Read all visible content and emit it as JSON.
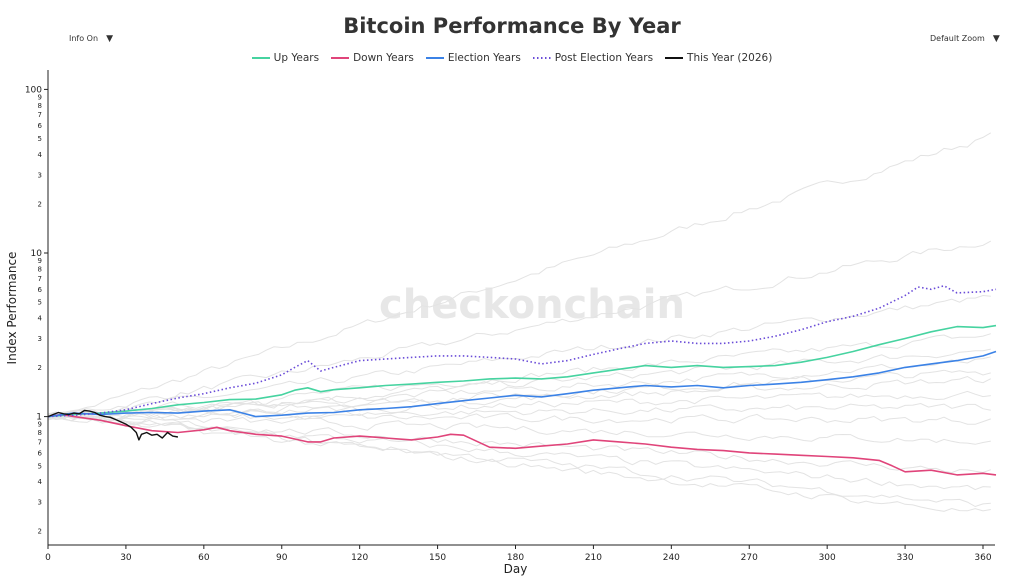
{
  "controls": {
    "info_label": "Info On",
    "zoom_label": "Default Zoom",
    "dropdown_arrow": "▼"
  },
  "watermark": "checkonchain",
  "colors": {
    "up": "#46d3a0",
    "down": "#e0447a",
    "election": "#3b82e6",
    "post_election": "#6a4cd8",
    "this_year": "#111111",
    "background_lines": "#e3e3e3"
  },
  "chart_data": {
    "type": "line",
    "title": "Bitcoin Performance By Year",
    "xlabel": "Day",
    "ylabel": "Index Performance",
    "xlim": [
      0,
      366
    ],
    "ylim": [
      0.17,
      150
    ],
    "y_scale": "log",
    "x_ticks": [
      0,
      30,
      60,
      90,
      120,
      150,
      180,
      210,
      240,
      270,
      300,
      330,
      360
    ],
    "y_major_ticks": [
      1,
      10,
      100
    ],
    "y_minor_labels": [
      {
        "v": 0.2,
        "t": "2"
      },
      {
        "v": 0.3,
        "t": "3"
      },
      {
        "v": 0.4,
        "t": "4"
      },
      {
        "v": 0.5,
        "t": "5"
      },
      {
        "v": 0.6,
        "t": "6"
      },
      {
        "v": 0.7,
        "t": "7"
      },
      {
        "v": 0.8,
        "t": "8"
      },
      {
        "v": 0.9,
        "t": "9"
      },
      {
        "v": 2,
        "t": "2"
      },
      {
        "v": 3,
        "t": "3"
      },
      {
        "v": 4,
        "t": "4"
      },
      {
        "v": 5,
        "t": "5"
      },
      {
        "v": 6,
        "t": "6"
      },
      {
        "v": 7,
        "t": "7"
      },
      {
        "v": 8,
        "t": "8"
      },
      {
        "v": 9,
        "t": "9"
      },
      {
        "v": 20,
        "t": "2"
      },
      {
        "v": 30,
        "t": "3"
      },
      {
        "v": 40,
        "t": "4"
      },
      {
        "v": 50,
        "t": "5"
      },
      {
        "v": 60,
        "t": "6"
      },
      {
        "v": 70,
        "t": "7"
      },
      {
        "v": 80,
        "t": "8"
      },
      {
        "v": 90,
        "t": "9"
      }
    ],
    "legend_position": "top-center",
    "grid": false,
    "series": [
      {
        "name": "Up Years",
        "key": "up",
        "style": "solid",
        "x": [
          0,
          10,
          20,
          30,
          40,
          50,
          60,
          70,
          80,
          90,
          95,
          100,
          105,
          110,
          120,
          130,
          140,
          150,
          160,
          170,
          180,
          190,
          200,
          210,
          220,
          230,
          240,
          250,
          260,
          270,
          280,
          290,
          300,
          310,
          320,
          330,
          340,
          350,
          360,
          365
        ],
        "y": [
          1.0,
          1.03,
          1.05,
          1.08,
          1.12,
          1.18,
          1.22,
          1.27,
          1.28,
          1.36,
          1.45,
          1.5,
          1.42,
          1.46,
          1.5,
          1.55,
          1.58,
          1.62,
          1.65,
          1.7,
          1.72,
          1.7,
          1.75,
          1.85,
          1.95,
          2.05,
          2.0,
          2.05,
          2.0,
          2.02,
          2.05,
          2.15,
          2.3,
          2.5,
          2.75,
          3.0,
          3.3,
          3.55,
          3.5,
          3.6
        ]
      },
      {
        "name": "Down Years",
        "key": "down",
        "style": "solid",
        "x": [
          0,
          5,
          10,
          20,
          30,
          40,
          50,
          60,
          65,
          70,
          80,
          90,
          100,
          105,
          110,
          120,
          130,
          140,
          150,
          155,
          160,
          170,
          180,
          190,
          200,
          210,
          220,
          230,
          240,
          250,
          260,
          270,
          280,
          290,
          300,
          310,
          320,
          325,
          330,
          340,
          350,
          360,
          365
        ],
        "y": [
          1.0,
          1.03,
          1.0,
          0.95,
          0.88,
          0.82,
          0.8,
          0.83,
          0.86,
          0.82,
          0.78,
          0.76,
          0.7,
          0.7,
          0.74,
          0.76,
          0.74,
          0.72,
          0.75,
          0.78,
          0.77,
          0.65,
          0.64,
          0.66,
          0.68,
          0.72,
          0.7,
          0.68,
          0.65,
          0.63,
          0.62,
          0.6,
          0.59,
          0.58,
          0.57,
          0.56,
          0.54,
          0.5,
          0.46,
          0.47,
          0.44,
          0.45,
          0.44
        ]
      },
      {
        "name": "Election Years",
        "key": "election",
        "style": "solid",
        "x": [
          0,
          10,
          20,
          30,
          40,
          50,
          60,
          70,
          75,
          80,
          90,
          100,
          110,
          120,
          130,
          140,
          150,
          160,
          170,
          180,
          190,
          200,
          210,
          220,
          230,
          240,
          250,
          260,
          270,
          280,
          290,
          300,
          310,
          320,
          330,
          340,
          350,
          360,
          365
        ],
        "y": [
          1.0,
          1.05,
          1.03,
          1.05,
          1.06,
          1.05,
          1.08,
          1.1,
          1.05,
          1.0,
          1.02,
          1.05,
          1.06,
          1.1,
          1.12,
          1.15,
          1.2,
          1.25,
          1.3,
          1.35,
          1.32,
          1.38,
          1.45,
          1.5,
          1.55,
          1.52,
          1.55,
          1.5,
          1.55,
          1.58,
          1.62,
          1.68,
          1.75,
          1.85,
          2.0,
          2.1,
          2.2,
          2.35,
          2.5
        ]
      },
      {
        "name": "Post Election Years",
        "key": "post_election",
        "style": "dotted",
        "x": [
          0,
          10,
          20,
          30,
          40,
          50,
          60,
          70,
          80,
          90,
          95,
          100,
          105,
          110,
          120,
          130,
          140,
          150,
          160,
          170,
          180,
          190,
          200,
          210,
          220,
          230,
          240,
          250,
          260,
          270,
          280,
          290,
          300,
          310,
          320,
          330,
          335,
          340,
          345,
          350,
          360,
          365
        ],
        "y": [
          1.0,
          1.02,
          1.05,
          1.1,
          1.2,
          1.3,
          1.38,
          1.5,
          1.6,
          1.8,
          2.0,
          2.2,
          1.9,
          2.0,
          2.2,
          2.25,
          2.3,
          2.35,
          2.35,
          2.3,
          2.25,
          2.1,
          2.2,
          2.4,
          2.6,
          2.8,
          2.9,
          2.8,
          2.8,
          2.9,
          3.1,
          3.4,
          3.8,
          4.1,
          4.6,
          5.5,
          6.2,
          6.0,
          6.3,
          5.7,
          5.8,
          6.0
        ]
      },
      {
        "name": "This Year (2026)",
        "key": "this_year",
        "style": "solid",
        "x": [
          0,
          2,
          4,
          6,
          8,
          10,
          12,
          14,
          16,
          18,
          20,
          22,
          24,
          26,
          28,
          30,
          32,
          34,
          35,
          36,
          38,
          40,
          42,
          44,
          46,
          48,
          50
        ],
        "y": [
          1.0,
          1.03,
          1.06,
          1.04,
          1.03,
          1.05,
          1.04,
          1.09,
          1.08,
          1.06,
          1.02,
          1.0,
          0.99,
          0.96,
          0.93,
          0.9,
          0.86,
          0.8,
          0.72,
          0.78,
          0.8,
          0.77,
          0.78,
          0.74,
          0.8,
          0.76,
          0.75
        ]
      }
    ]
  }
}
